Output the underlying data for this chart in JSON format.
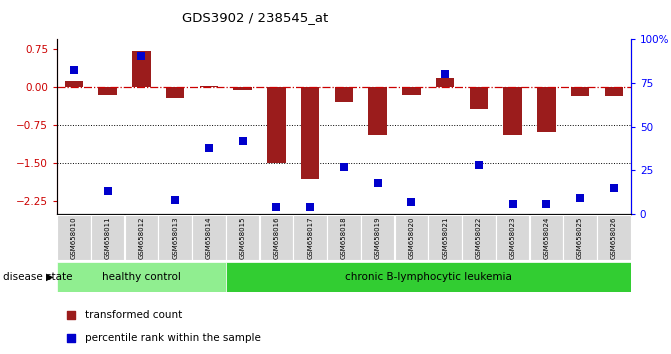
{
  "title": "GDS3902 / 238545_at",
  "samples": [
    "GSM658010",
    "GSM658011",
    "GSM658012",
    "GSM658013",
    "GSM658014",
    "GSM658015",
    "GSM658016",
    "GSM658017",
    "GSM658018",
    "GSM658019",
    "GSM658020",
    "GSM658021",
    "GSM658022",
    "GSM658023",
    "GSM658024",
    "GSM658025",
    "GSM658026"
  ],
  "bar_values": [
    0.13,
    -0.15,
    0.72,
    -0.22,
    0.02,
    -0.05,
    -1.5,
    -1.8,
    -0.3,
    -0.95,
    -0.15,
    0.18,
    -0.42,
    -0.95,
    -0.88,
    -0.18,
    -0.18
  ],
  "percentile_values": [
    82,
    13,
    90,
    8,
    38,
    42,
    4,
    4,
    27,
    18,
    7,
    80,
    28,
    6,
    6,
    9,
    15
  ],
  "ylim_left": [
    -2.5,
    0.95
  ],
  "ylim_right": [
    0,
    100
  ],
  "yticks_left": [
    0.75,
    0.0,
    -0.75,
    -1.5,
    -2.25
  ],
  "yticks_right": [
    100,
    75,
    50,
    25,
    0
  ],
  "hline_y": 0.0,
  "dotted_lines": [
    -0.75,
    -1.5
  ],
  "bar_color": "#9B1C1C",
  "percentile_color": "#0000CC",
  "healthy_color": "#90EE90",
  "leukemia_color": "#32CD32",
  "healthy_count": 5,
  "leukemia_count": 12,
  "healthy_label": "healthy control",
  "leukemia_label": "chronic B-lymphocytic leukemia",
  "disease_state_label": "disease state",
  "legend_bar_label": "transformed count",
  "legend_pct_label": "percentile rank within the sample",
  "background_color": "#FFFFFF",
  "bar_width": 0.55
}
